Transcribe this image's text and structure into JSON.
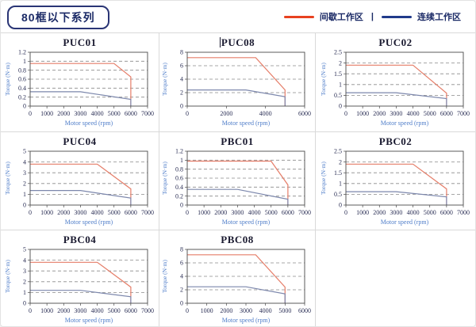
{
  "header": {
    "title": "80框以下系列",
    "legend_separator": "|",
    "legend": [
      {
        "label": "间歇工作区",
        "color": "#e8411f"
      },
      {
        "label": "连续工作区",
        "color": "#203a8a"
      }
    ]
  },
  "axis": {
    "xlabel": "Motor speed (rpm)",
    "ylabel": "Torque (N·m)"
  },
  "colors": {
    "intermittent_curve": "#e57d68",
    "continuous_curve": "#7c87ac",
    "gridline": "#8a8a8a",
    "plot_frame": "#4a4a4a",
    "tick_text": "#2b2f55",
    "axis_label_text": "#4f7dc9",
    "cell_border": "#d9d9d9"
  },
  "chart_data": [
    {
      "type": "line",
      "title": "PUC01",
      "cursor": false,
      "xlabel": "Motor speed (rpm)",
      "ylabel": "Torque (N·m)",
      "ylim": [
        0,
        1.2
      ],
      "yticks": [
        0,
        0.2,
        0.4,
        0.6,
        0.8,
        1,
        1.2
      ],
      "xlim": [
        0,
        7000
      ],
      "xticks": [
        0,
        1000,
        2000,
        3000,
        4000,
        5000,
        6000,
        7000
      ],
      "series": [
        {
          "name": "间歇工作区",
          "color_key": "intermittent_curve",
          "points": [
            [
              0,
              0.95
            ],
            [
              5000,
              0.95
            ],
            [
              6000,
              0.65
            ],
            [
              6000,
              0
            ]
          ]
        },
        {
          "name": "连续工作区",
          "color_key": "continuous_curve",
          "points": [
            [
              0,
              0.32
            ],
            [
              3000,
              0.32
            ],
            [
              6000,
              0.15
            ],
            [
              6000,
              0
            ]
          ]
        }
      ]
    },
    {
      "type": "line",
      "title": "PUC08",
      "cursor": true,
      "xlabel": "Motor speed (rpm)",
      "ylabel": "Torque (N·m)",
      "ylim": [
        0,
        8
      ],
      "yticks": [
        0,
        2,
        4,
        6,
        8
      ],
      "xlim": [
        0,
        6000
      ],
      "xticks": [
        0,
        2000,
        4000,
        6000
      ],
      "series": [
        {
          "name": "间歇工作区",
          "color_key": "intermittent_curve",
          "points": [
            [
              0,
              7.2
            ],
            [
              3500,
              7.2
            ],
            [
              5000,
              2.4
            ],
            [
              5000,
              0
            ]
          ]
        },
        {
          "name": "连续工作区",
          "color_key": "continuous_curve",
          "points": [
            [
              0,
              2.4
            ],
            [
              3000,
              2.4
            ],
            [
              5000,
              1.4
            ],
            [
              5000,
              0
            ]
          ]
        }
      ]
    },
    {
      "type": "line",
      "title": "PUC02",
      "cursor": false,
      "xlabel": "Motor speed (rpm)",
      "ylabel": "Torque (N·m)",
      "ylim": [
        0,
        2.5
      ],
      "yticks": [
        0,
        0.5,
        1,
        1.5,
        2,
        2.5
      ],
      "xlim": [
        0,
        7000
      ],
      "xticks": [
        0,
        1000,
        2000,
        3000,
        4000,
        5000,
        6000,
        7000
      ],
      "series": [
        {
          "name": "间歇工作区",
          "color_key": "intermittent_curve",
          "points": [
            [
              0,
              1.9
            ],
            [
              4000,
              1.9
            ],
            [
              6000,
              0.6
            ],
            [
              6000,
              0
            ]
          ]
        },
        {
          "name": "连续工作区",
          "color_key": "continuous_curve",
          "points": [
            [
              0,
              0.62
            ],
            [
              3000,
              0.62
            ],
            [
              6000,
              0.35
            ],
            [
              6000,
              0
            ]
          ]
        }
      ]
    },
    {
      "type": "line",
      "title": "PUC04",
      "cursor": false,
      "xlabel": "Motor speed (rpm)",
      "ylabel": "Torque (N·m)",
      "ylim": [
        0,
        5
      ],
      "yticks": [
        0,
        1,
        2,
        3,
        4,
        5
      ],
      "xlim": [
        0,
        7000
      ],
      "xticks": [
        0,
        1000,
        2000,
        3000,
        4000,
        5000,
        6000,
        7000
      ],
      "series": [
        {
          "name": "间歇工作区",
          "color_key": "intermittent_curve",
          "points": [
            [
              0,
              3.8
            ],
            [
              4000,
              3.8
            ],
            [
              6000,
              1.5
            ],
            [
              6000,
              0
            ]
          ]
        },
        {
          "name": "连续工作区",
          "color_key": "continuous_curve",
          "points": [
            [
              0,
              1.35
            ],
            [
              3000,
              1.35
            ],
            [
              6000,
              0.65
            ],
            [
              6000,
              0
            ]
          ]
        }
      ]
    },
    {
      "type": "line",
      "title": "PBC01",
      "cursor": false,
      "xlabel": "Motor speed (rpm)",
      "ylabel": "Torque (N·m)",
      "ylim": [
        0,
        1.2
      ],
      "yticks": [
        0,
        0.2,
        0.4,
        0.6,
        0.8,
        1,
        1.2
      ],
      "xlim": [
        0,
        7000
      ],
      "xticks": [
        0,
        1000,
        2000,
        3000,
        4000,
        5000,
        6000,
        7000
      ],
      "series": [
        {
          "name": "间歇工作区",
          "color_key": "intermittent_curve",
          "points": [
            [
              0,
              0.98
            ],
            [
              5000,
              0.98
            ],
            [
              6000,
              0.45
            ],
            [
              6000,
              0
            ]
          ]
        },
        {
          "name": "连续工作区",
          "color_key": "continuous_curve",
          "points": [
            [
              0,
              0.35
            ],
            [
              3000,
              0.35
            ],
            [
              6000,
              0.13
            ],
            [
              6000,
              0
            ]
          ]
        }
      ]
    },
    {
      "type": "line",
      "title": "PBC02",
      "cursor": false,
      "xlabel": "Motor speed (rpm)",
      "ylabel": "Torque (N·m)",
      "ylim": [
        0,
        2.5
      ],
      "yticks": [
        0,
        0.5,
        1,
        1.5,
        2,
        2.5
      ],
      "xlim": [
        0,
        7000
      ],
      "xticks": [
        0,
        1000,
        2000,
        3000,
        4000,
        5000,
        6000,
        7000
      ],
      "series": [
        {
          "name": "间歇工作区",
          "color_key": "intermittent_curve",
          "points": [
            [
              0,
              1.9
            ],
            [
              4000,
              1.9
            ],
            [
              6000,
              0.75
            ],
            [
              6000,
              0
            ]
          ]
        },
        {
          "name": "连续工作区",
          "color_key": "continuous_curve",
          "points": [
            [
              0,
              0.62
            ],
            [
              3000,
              0.62
            ],
            [
              6000,
              0.38
            ],
            [
              6000,
              0
            ]
          ]
        }
      ]
    },
    {
      "type": "line",
      "title": "PBC04",
      "cursor": false,
      "xlabel": "Motor speed (rpm)",
      "ylabel": "Torque (N·m)",
      "ylim": [
        0,
        5
      ],
      "yticks": [
        0,
        1,
        2,
        3,
        4,
        5
      ],
      "xlim": [
        0,
        7000
      ],
      "xticks": [
        0,
        1000,
        2000,
        3000,
        4000,
        5000,
        6000,
        7000
      ],
      "series": [
        {
          "name": "间歇工作区",
          "color_key": "intermittent_curve",
          "points": [
            [
              0,
              3.8
            ],
            [
              4000,
              3.8
            ],
            [
              6000,
              1.5
            ],
            [
              6000,
              0
            ]
          ]
        },
        {
          "name": "连续工作区",
          "color_key": "continuous_curve",
          "points": [
            [
              0,
              1.2
            ],
            [
              3000,
              1.2
            ],
            [
              6000,
              0.6
            ],
            [
              6000,
              0
            ]
          ]
        }
      ]
    },
    {
      "type": "line",
      "title": "PBC08",
      "cursor": false,
      "xlabel": "Motor speed (rpm)",
      "ylabel": "Torque (N·m)",
      "ylim": [
        0,
        8
      ],
      "yticks": [
        0,
        2,
        4,
        6,
        8
      ],
      "xlim": [
        0,
        6000
      ],
      "xticks": [
        0,
        1000,
        2000,
        3000,
        4000,
        5000,
        6000
      ],
      "series": [
        {
          "name": "间歇工作区",
          "color_key": "intermittent_curve",
          "points": [
            [
              0,
              7.2
            ],
            [
              3500,
              7.2
            ],
            [
              5000,
              2.4
            ],
            [
              5000,
              0
            ]
          ]
        },
        {
          "name": "连续工作区",
          "color_key": "continuous_curve",
          "points": [
            [
              0,
              2.45
            ],
            [
              3000,
              2.45
            ],
            [
              5000,
              1.4
            ],
            [
              5000,
              0
            ]
          ]
        }
      ]
    }
  ]
}
